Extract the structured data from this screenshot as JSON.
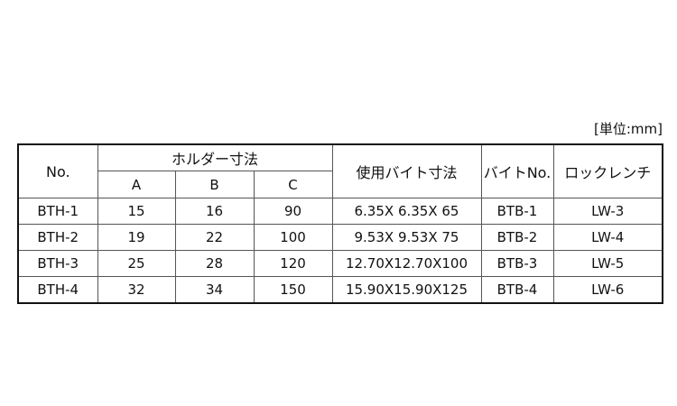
{
  "unit_label": "[単位:mm]",
  "headers": {
    "no": "No.",
    "holder": "ホルダー寸法",
    "a": "A",
    "b": "B",
    "c": "C",
    "bit_size": "使用バイト寸法",
    "bit_no": "バイトNo.",
    "wrench": "ロックレンチ"
  },
  "rows": [
    {
      "no": "BTH-1",
      "a": "15",
      "b": "16",
      "c": "90",
      "bit_size": "6.35X 6.35X 65",
      "bit_no": "BTB-1",
      "wrench": "LW-3"
    },
    {
      "no": "BTH-2",
      "a": "19",
      "b": "22",
      "c": "100",
      "bit_size": "9.53X 9.53X 75",
      "bit_no": "BTB-2",
      "wrench": "LW-4"
    },
    {
      "no": "BTH-3",
      "a": "25",
      "b": "28",
      "c": "120",
      "bit_size": "12.70X12.70X100",
      "bit_no": "BTB-3",
      "wrench": "LW-5"
    },
    {
      "no": "BTH-4",
      "a": "32",
      "b": "34",
      "c": "150",
      "bit_size": "15.90X15.90X125",
      "bit_no": "BTB-4",
      "wrench": "LW-6"
    }
  ]
}
